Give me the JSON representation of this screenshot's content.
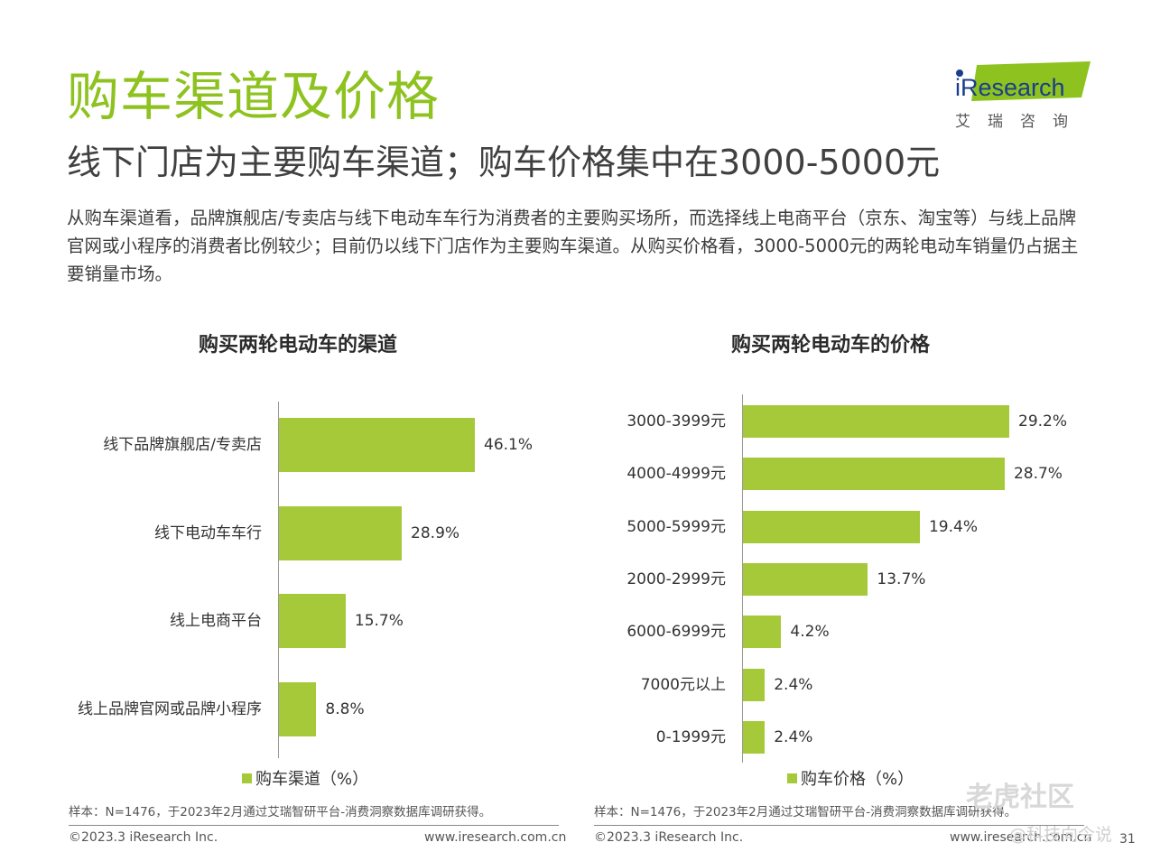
{
  "header": {
    "title": "购车渠道及价格",
    "subtitle": "线下门店为主要购车渠道；购车价格集中在3000-5000元",
    "paragraph": "从购车渠道看，品牌旗舰店/专卖店与线下电动车车行为消费者的主要购买场所，而选择线上电商平台（京东、淘宝等）与线上品牌官网或小程序的消费者比例较少；目前仍以线下门店作为主要购车渠道。从购买价格看，3000-5000元的两轮电动车销量仍占据主要销量市场。"
  },
  "logo": {
    "text": "iResearch",
    "cn": "艾瑞咨询",
    "color": "#8dc21f"
  },
  "colors": {
    "accent": "#8dc21f",
    "bar": "#a5c939"
  },
  "chart_data": [
    {
      "type": "bar",
      "orientation": "horizontal",
      "title": "购买两轮电动车的渠道",
      "categories": [
        "线下品牌旗舰店/专卖店",
        "线下电动车车行",
        "线上电商平台",
        "线上品牌官网或品牌小程序"
      ],
      "values": [
        46.1,
        28.9,
        15.7,
        8.8
      ],
      "value_labels": [
        "46.1%",
        "28.9%",
        "15.7%",
        "8.8%"
      ],
      "series": [
        {
          "name": "购车渠道（%）",
          "values": [
            46.1,
            28.9,
            15.7,
            8.8
          ]
        }
      ],
      "legend": "购车渠道（%）",
      "legend_position": "bottom",
      "note": "样本：N=1476，于2023年2月通过艾瑞智研平台-消费洞察数据库调研获得。",
      "grid": false
    },
    {
      "type": "bar",
      "orientation": "horizontal",
      "title": "购买两轮电动车的价格",
      "categories": [
        "3000-3999元",
        "4000-4999元",
        "5000-5999元",
        "2000-2999元",
        "6000-6999元",
        "7000元以上",
        "0-1999元"
      ],
      "values": [
        29.2,
        28.7,
        19.4,
        13.7,
        4.2,
        2.4,
        2.4
      ],
      "value_labels": [
        "29.2%",
        "28.7%",
        "19.4%",
        "13.7%",
        "4.2%",
        "2.4%",
        "2.4%"
      ],
      "series": [
        {
          "name": "购车价格（%）",
          "values": [
            29.2,
            28.7,
            19.4,
            13.7,
            4.2,
            2.4,
            2.4
          ]
        }
      ],
      "legend": "购车价格（%）",
      "legend_position": "bottom",
      "note": "样本：N=1476，于2023年2月通过艾瑞智研平台-消费洞察数据库调研获得。",
      "grid": false
    }
  ],
  "footer": {
    "copyright_left": "©2023.3 iResearch Inc.",
    "url_left": "www.iresearch.com.cn",
    "copyright_right": "©2023.3 iResearch Inc.",
    "url_right": "www.iresearch.com.cn",
    "page_number": "31"
  },
  "watermark": {
    "line1": "老虎社区",
    "line2": "@科技向令说"
  }
}
